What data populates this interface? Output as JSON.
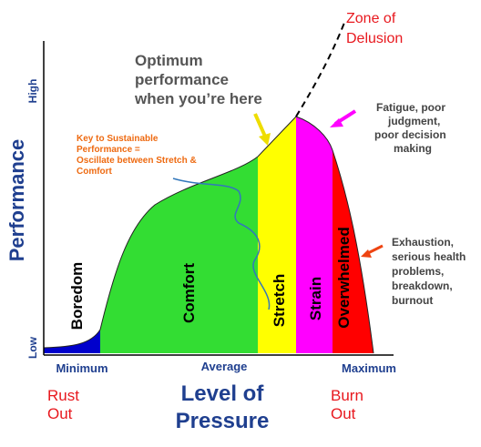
{
  "y_axis": {
    "title": "Performance",
    "high": "High",
    "low": "Low"
  },
  "x_axis": {
    "title_lines": [
      "Level of",
      "Pressure"
    ],
    "minimum": "Minimum",
    "average": "Average",
    "maximum": "Maximum",
    "left_outcome": [
      "Rust",
      "Out"
    ],
    "right_outcome": [
      "Burn",
      "Out"
    ]
  },
  "zones": [
    "Boredom",
    "Comfort",
    "Stretch",
    "Strain",
    "Overwhelmed"
  ],
  "annotations": {
    "delusion": [
      "Zone of",
      "Delusion"
    ],
    "optimum": [
      "Optimum",
      "performance",
      "when you’re here"
    ],
    "fatigue": [
      "Fatigue, poor",
      "judgment,",
      "poor decision",
      "making"
    ],
    "key": [
      "Key to Sustainable",
      "Performance =",
      "Oscillate between Stretch &",
      "Comfort"
    ],
    "exhaustion": [
      "Exhaustion,",
      "serious health",
      "problems,",
      "breakdown,",
      "burnout"
    ]
  }
}
